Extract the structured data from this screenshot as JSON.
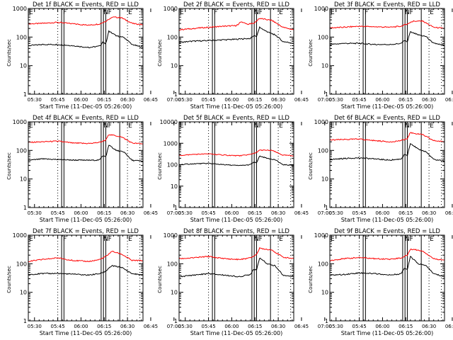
{
  "chart_data": [
    {
      "type": "line",
      "title": "Det 1f BLACK = Events, RED = LLD",
      "xlabel": "Start Time (11-Dec-05 05:26:00)",
      "ylabel": "Counts/sec",
      "yscale": "log",
      "ylim": [
        1,
        1000
      ],
      "yticks": [
        "1",
        "10",
        "100",
        "1000"
      ],
      "xticks": [
        "05:30",
        "05:45",
        "06:00",
        "06:15",
        "06:30",
        "06:45",
        "07:00"
      ],
      "xlim_minutes": [
        26,
        100
      ],
      "series": [
        {
          "name": "LLD",
          "color": "#ff0000",
          "x": [
            26,
            35,
            45,
            55,
            65,
            72,
            76,
            80,
            86,
            93,
            100
          ],
          "values": [
            290,
            300,
            330,
            290,
            260,
            290,
            360,
            500,
            480,
            300,
            270
          ]
        },
        {
          "name": "Events",
          "color": "#000000",
          "x": [
            26,
            35,
            45,
            55,
            65,
            72,
            74,
            76,
            78,
            83,
            88,
            93,
            100
          ],
          "values": [
            50,
            55,
            55,
            50,
            43,
            48,
            65,
            60,
            160,
            110,
            95,
            55,
            43
          ]
        }
      ],
      "markers": [
        {
          "label": "E",
          "x": 26
        },
        {
          "label": "F",
          "x": 48
        },
        {
          "label": "N",
          "x": 74
        },
        {
          "label": "F",
          "x": 77
        },
        {
          "label": "E",
          "x": 90
        }
      ]
    },
    {
      "type": "line",
      "title": "Det 2f BLACK = Events, RED = LLD",
      "xlabel": "Start Time (11-Dec-05 05:26:00)",
      "ylabel": "Counts/sec",
      "yscale": "log",
      "ylim": [
        1,
        1000
      ],
      "yticks": [
        "1",
        "10",
        "100",
        "1000"
      ],
      "xticks": [
        "05:30",
        "05:45",
        "06:00",
        "06:15",
        "06:30",
        "06:45",
        "07:00"
      ],
      "xlim_minutes": [
        26,
        100
      ],
      "series": [
        {
          "name": "LLD",
          "color": "#ff0000",
          "x": [
            26,
            35,
            45,
            55,
            63,
            66,
            70,
            74,
            78,
            86,
            93,
            100
          ],
          "values": [
            180,
            200,
            220,
            240,
            250,
            350,
            280,
            300,
            450,
            380,
            220,
            180
          ]
        },
        {
          "name": "Events",
          "color": "#000000",
          "x": [
            26,
            35,
            45,
            55,
            65,
            72,
            74,
            76,
            78,
            83,
            88,
            93,
            100
          ],
          "values": [
            65,
            72,
            75,
            80,
            85,
            90,
            110,
            105,
            220,
            150,
            120,
            70,
            60
          ]
        }
      ],
      "markers": [
        {
          "label": "E",
          "x": 26
        },
        {
          "label": "F",
          "x": 48
        },
        {
          "label": "N",
          "x": 74
        },
        {
          "label": "F",
          "x": 77
        },
        {
          "label": "E",
          "x": 90
        }
      ]
    },
    {
      "type": "line",
      "title": "Det 3f BLACK = Events, RED = LLD",
      "xlabel": "Start Time (11-Dec-05 05:26:00)",
      "ylabel": "Counts/sec",
      "yscale": "log",
      "ylim": [
        1,
        1000
      ],
      "yticks": [
        "1",
        "10",
        "100",
        "1000"
      ],
      "xticks": [
        "05:30",
        "05:45",
        "06:00",
        "06:15",
        "06:30",
        "06:45",
        "07:00"
      ],
      "xlim_minutes": [
        26,
        100
      ],
      "series": [
        {
          "name": "LLD",
          "color": "#ff0000",
          "x": [
            26,
            35,
            45,
            55,
            65,
            72,
            76,
            80,
            86,
            93,
            100
          ],
          "values": [
            210,
            220,
            240,
            230,
            220,
            240,
            290,
            360,
            360,
            220,
            200
          ]
        },
        {
          "name": "Events",
          "color": "#000000",
          "x": [
            26,
            35,
            45,
            55,
            65,
            72,
            74,
            76,
            78,
            83,
            88,
            93,
            100
          ],
          "values": [
            55,
            60,
            60,
            55,
            55,
            60,
            75,
            70,
            150,
            120,
            105,
            60,
            52
          ]
        }
      ],
      "markers": [
        {
          "label": "E",
          "x": 26
        },
        {
          "label": "F",
          "x": 48
        },
        {
          "label": "N",
          "x": 74
        },
        {
          "label": "F",
          "x": 77
        },
        {
          "label": "E",
          "x": 90
        }
      ]
    },
    {
      "type": "line",
      "title": "Det 4f BLACK = Events, RED = LLD",
      "xlabel": "Start Time (11-Dec-05 05:26:00)",
      "ylabel": "Counts/sec",
      "yscale": "log",
      "ylim": [
        1,
        1000
      ],
      "yticks": [
        "1",
        "10",
        "100",
        "1000"
      ],
      "xticks": [
        "05:30",
        "05:45",
        "06:00",
        "06:15",
        "06:30",
        "06:45",
        "07:00"
      ],
      "xlim_minutes": [
        26,
        100
      ],
      "series": [
        {
          "name": "LLD",
          "color": "#ff0000",
          "x": [
            26,
            35,
            45,
            55,
            65,
            72,
            76,
            78,
            86,
            93,
            100
          ],
          "values": [
            190,
            200,
            210,
            180,
            175,
            190,
            230,
            360,
            300,
            180,
            170
          ]
        },
        {
          "name": "Events",
          "color": "#000000",
          "x": [
            26,
            35,
            45,
            55,
            65,
            72,
            74,
            76,
            78,
            83,
            88,
            93,
            100
          ],
          "values": [
            45,
            50,
            48,
            46,
            45,
            46,
            65,
            60,
            150,
            100,
            85,
            45,
            42
          ]
        }
      ],
      "markers": [
        {
          "label": "E",
          "x": 26
        },
        {
          "label": "F",
          "x": 48
        },
        {
          "label": "N",
          "x": 74
        },
        {
          "label": "F",
          "x": 77
        },
        {
          "label": "E",
          "x": 90
        }
      ]
    },
    {
      "type": "line",
      "title": "Det 5f BLACK = Events, RED = LLD",
      "xlabel": "Start Time (11-Dec-05 05:26:00)",
      "ylabel": "Counts/sec",
      "yscale": "log",
      "ylim": [
        1,
        10000
      ],
      "yticks": [
        "1",
        "10",
        "100",
        "1000",
        "10000"
      ],
      "xticks": [
        "05:30",
        "05:45",
        "06:00",
        "06:15",
        "06:30",
        "06:45",
        "07:00"
      ],
      "xlim_minutes": [
        26,
        100
      ],
      "series": [
        {
          "name": "LLD",
          "color": "#ff0000",
          "x": [
            26,
            35,
            45,
            55,
            65,
            72,
            76,
            78,
            86,
            93,
            100
          ],
          "values": [
            270,
            300,
            320,
            280,
            260,
            300,
            380,
            480,
            460,
            280,
            260
          ]
        },
        {
          "name": "Events",
          "color": "#000000",
          "x": [
            26,
            35,
            45,
            55,
            65,
            72,
            74,
            76,
            78,
            83,
            88,
            93,
            100
          ],
          "values": [
            100,
            110,
            115,
            100,
            90,
            100,
            130,
            120,
            250,
            200,
            170,
            100,
            95
          ]
        }
      ],
      "markers": [
        {
          "label": "E",
          "x": 26
        },
        {
          "label": "F",
          "x": 48
        },
        {
          "label": "N",
          "x": 74
        },
        {
          "label": "F",
          "x": 77
        },
        {
          "label": "E",
          "x": 90
        }
      ]
    },
    {
      "type": "line",
      "title": "Det 6f BLACK = Events, RED = LLD",
      "xlabel": "Start Time (11-Dec-05 05:26:00)",
      "ylabel": "Counts/sec",
      "yscale": "log",
      "ylim": [
        1,
        1000
      ],
      "yticks": [
        "1",
        "10",
        "100",
        "1000"
      ],
      "xticks": [
        "05:30",
        "05:45",
        "06:00",
        "06:15",
        "06:30",
        "06:45",
        "07:00"
      ],
      "xlim_minutes": [
        26,
        100
      ],
      "series": [
        {
          "name": "LLD",
          "color": "#ff0000",
          "x": [
            26,
            35,
            45,
            55,
            65,
            72,
            76,
            78,
            86,
            93,
            100
          ],
          "values": [
            230,
            240,
            250,
            220,
            200,
            220,
            260,
            420,
            350,
            220,
            200
          ]
        },
        {
          "name": "Events",
          "color": "#000000",
          "x": [
            26,
            35,
            45,
            55,
            65,
            72,
            74,
            76,
            78,
            83,
            88,
            93,
            100
          ],
          "values": [
            48,
            52,
            55,
            50,
            46,
            50,
            70,
            65,
            180,
            110,
            90,
            48,
            43
          ]
        }
      ],
      "markers": [
        {
          "label": "E",
          "x": 26
        },
        {
          "label": "F",
          "x": 48
        },
        {
          "label": "N",
          "x": 74
        },
        {
          "label": "F",
          "x": 77
        },
        {
          "label": "E",
          "x": 90
        }
      ]
    },
    {
      "type": "line",
      "title": "Det 7f BLACK = Events, RED = LLD",
      "xlabel": "Start Time (11-Dec-05 05:26:00)",
      "ylabel": "Counts/sec",
      "yscale": "log",
      "ylim": [
        1,
        1000
      ],
      "yticks": [
        "1",
        "10",
        "100",
        "1000"
      ],
      "xticks": [
        "05:30",
        "05:45",
        "06:00",
        "06:15",
        "06:30",
        "06:45",
        "07:00"
      ],
      "xlim_minutes": [
        26,
        100
      ],
      "series": [
        {
          "name": "LLD",
          "color": "#ff0000",
          "x": [
            26,
            35,
            45,
            55,
            65,
            72,
            76,
            80,
            86,
            93,
            100
          ],
          "values": [
            120,
            140,
            160,
            130,
            120,
            140,
            180,
            270,
            220,
            130,
            130
          ]
        },
        {
          "name": "Events",
          "color": "#000000",
          "x": [
            26,
            35,
            45,
            55,
            65,
            72,
            76,
            80,
            86,
            93,
            100
          ],
          "values": [
            42,
            45,
            46,
            43,
            40,
            45,
            55,
            85,
            75,
            45,
            40
          ]
        }
      ],
      "markers": [
        {
          "label": "E",
          "x": 26
        },
        {
          "label": "F",
          "x": 48
        },
        {
          "label": "N",
          "x": 74
        },
        {
          "label": "F",
          "x": 77
        },
        {
          "label": "E",
          "x": 90
        }
      ]
    },
    {
      "type": "line",
      "title": "Det 8f BLACK = Events, RED = LLD",
      "xlabel": "Start Time (11-Dec-05 05:26:00)",
      "ylabel": "Counts/sec",
      "yscale": "log",
      "ylim": [
        1,
        1000
      ],
      "yticks": [
        "1",
        "10",
        "100",
        "1000"
      ],
      "xticks": [
        "05:30",
        "05:45",
        "06:00",
        "06:15",
        "06:30",
        "06:45",
        "07:00"
      ],
      "xlim_minutes": [
        26,
        100
      ],
      "series": [
        {
          "name": "LLD",
          "color": "#ff0000",
          "x": [
            26,
            35,
            45,
            55,
            65,
            72,
            76,
            78,
            86,
            93,
            100
          ],
          "values": [
            150,
            160,
            180,
            150,
            140,
            160,
            210,
            350,
            300,
            170,
            150
          ]
        },
        {
          "name": "Events",
          "color": "#000000",
          "x": [
            26,
            35,
            45,
            55,
            65,
            72,
            74,
            76,
            78,
            83,
            88,
            93,
            100
          ],
          "values": [
            35,
            40,
            45,
            40,
            35,
            42,
            65,
            60,
            160,
            100,
            85,
            40,
            35
          ]
        }
      ],
      "markers": [
        {
          "label": "E",
          "x": 26
        },
        {
          "label": "F",
          "x": 48
        },
        {
          "label": "N",
          "x": 74
        },
        {
          "label": "F",
          "x": 77
        },
        {
          "label": "E",
          "x": 90
        }
      ]
    },
    {
      "type": "line",
      "title": "Det 9f BLACK = Events, RED = LLD",
      "xlabel": "Start Time (11-Dec-05 05:26:00)",
      "ylabel": "Counts/sec",
      "yscale": "log",
      "ylim": [
        1,
        1000
      ],
      "yticks": [
        "1",
        "10",
        "100",
        "1000"
      ],
      "xticks": [
        "05:30",
        "05:45",
        "06:00",
        "06:15",
        "06:30",
        "06:45",
        "07:00"
      ],
      "xlim_minutes": [
        26,
        100
      ],
      "series": [
        {
          "name": "LLD",
          "color": "#ff0000",
          "x": [
            26,
            35,
            45,
            55,
            65,
            72,
            76,
            78,
            86,
            93,
            100
          ],
          "values": [
            130,
            150,
            165,
            150,
            145,
            160,
            200,
            330,
            280,
            150,
            135
          ]
        },
        {
          "name": "Events",
          "color": "#000000",
          "x": [
            26,
            35,
            45,
            55,
            65,
            72,
            74,
            76,
            78,
            83,
            88,
            93,
            100
          ],
          "values": [
            40,
            42,
            48,
            45,
            40,
            45,
            70,
            65,
            180,
            100,
            85,
            45,
            35
          ]
        }
      ],
      "markers": [
        {
          "label": "E",
          "x": 26
        },
        {
          "label": "F",
          "x": 48
        },
        {
          "label": "N",
          "x": 74
        },
        {
          "label": "F",
          "x": 77
        },
        {
          "label": "E",
          "x": 90
        }
      ]
    }
  ]
}
